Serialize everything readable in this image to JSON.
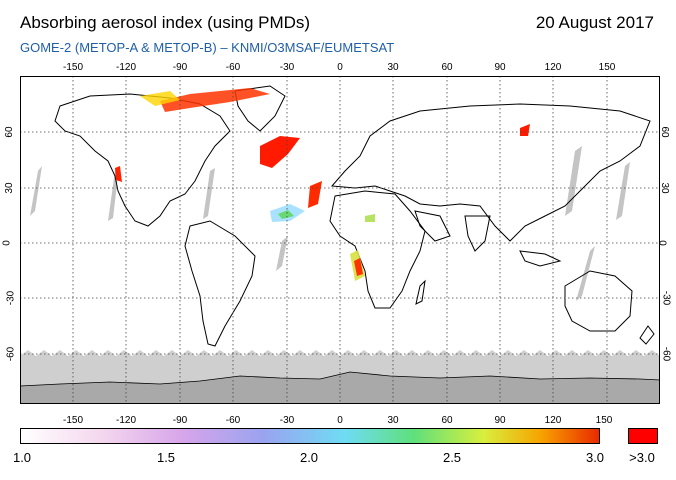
{
  "header": {
    "title": "Absorbing aerosol index (using PMDs)",
    "date": "20 August 2017",
    "subtitle": "GOME-2 (METOP-A & METOP-B)  –  KNMI/O3MSAF/EUMETSAT"
  },
  "map": {
    "lon_ticks": [
      "-150",
      "-120",
      "-90",
      "-60",
      "-30",
      "0",
      "30",
      "60",
      "90",
      "120",
      "150"
    ],
    "lat_ticks": [
      "60",
      "30",
      "0",
      "-30",
      "-60"
    ],
    "colors": {
      "ocean": "#ffffff",
      "land_outline": "#000000",
      "polar_mask": "#cfcfcf",
      "antarctica": "#a9a9a9",
      "grid": "#444444"
    }
  },
  "colorbar": {
    "labels": [
      "1.0",
      "1.5",
      "2.0",
      "2.5",
      "3.0"
    ],
    "over_label": ">3.0",
    "over_color": "#ff0000"
  }
}
